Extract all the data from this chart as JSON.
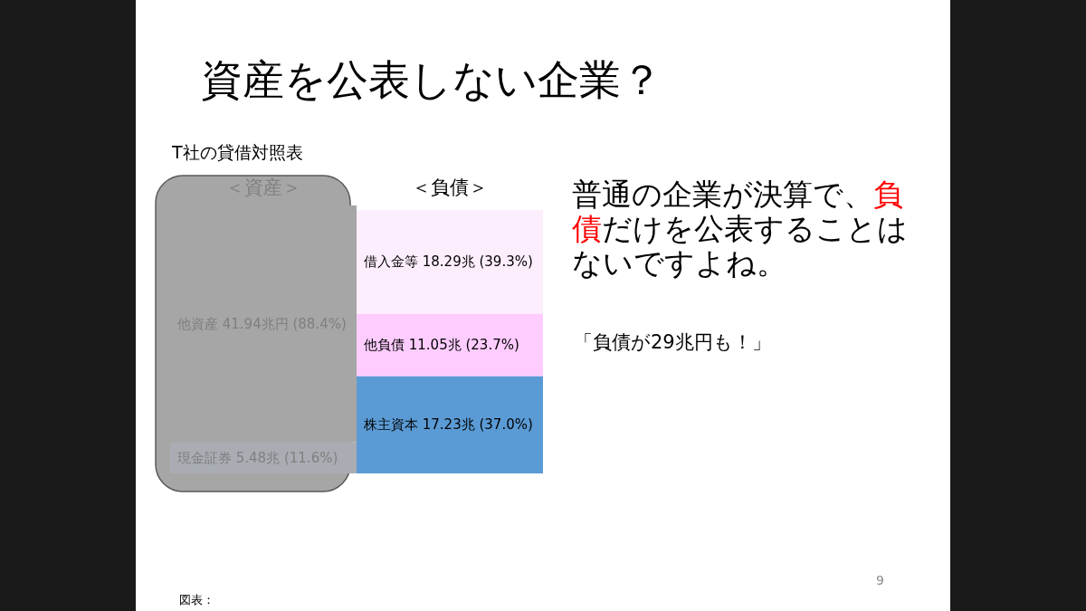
{
  "chart_data": {
    "type": "bar",
    "stacked": true,
    "title": "資産を公表しない企業？",
    "subtitle": "T社の貸借対照表",
    "categories": [
      "＜資産＞",
      "＜負債＞"
    ],
    "series": [
      {
        "color": "#a9adb3",
        "values": [
          5.48,
          null
        ],
        "value_labels": [
          "現金証券 5.48兆 (11.6%)",
          null
        ]
      },
      {
        "color": "#a6a6a6",
        "values": [
          41.94,
          null
        ],
        "value_labels": [
          "他資産 41.94兆円 (88.4%)",
          null
        ]
      },
      {
        "color": "#5b9bd5",
        "values": [
          null,
          17.23
        ],
        "value_labels": [
          null,
          "株主資本 17.23兆 (37.0%)"
        ]
      },
      {
        "color": "#ffccff",
        "values": [
          null,
          11.05
        ],
        "value_labels": [
          null,
          "他負債 11.05兆 (23.7%)"
        ]
      },
      {
        "color": "#fdeefd",
        "values": [
          null,
          18.29
        ],
        "value_labels": [
          null,
          "借入金等 18.29兆 (39.3%)"
        ]
      }
    ],
    "annotations": [
      "普通の企業が決算で、**負債**だけを公表することはないですよね。",
      "「負債が29兆円も！」",
      "9",
      "図表："
    ]
  }
}
